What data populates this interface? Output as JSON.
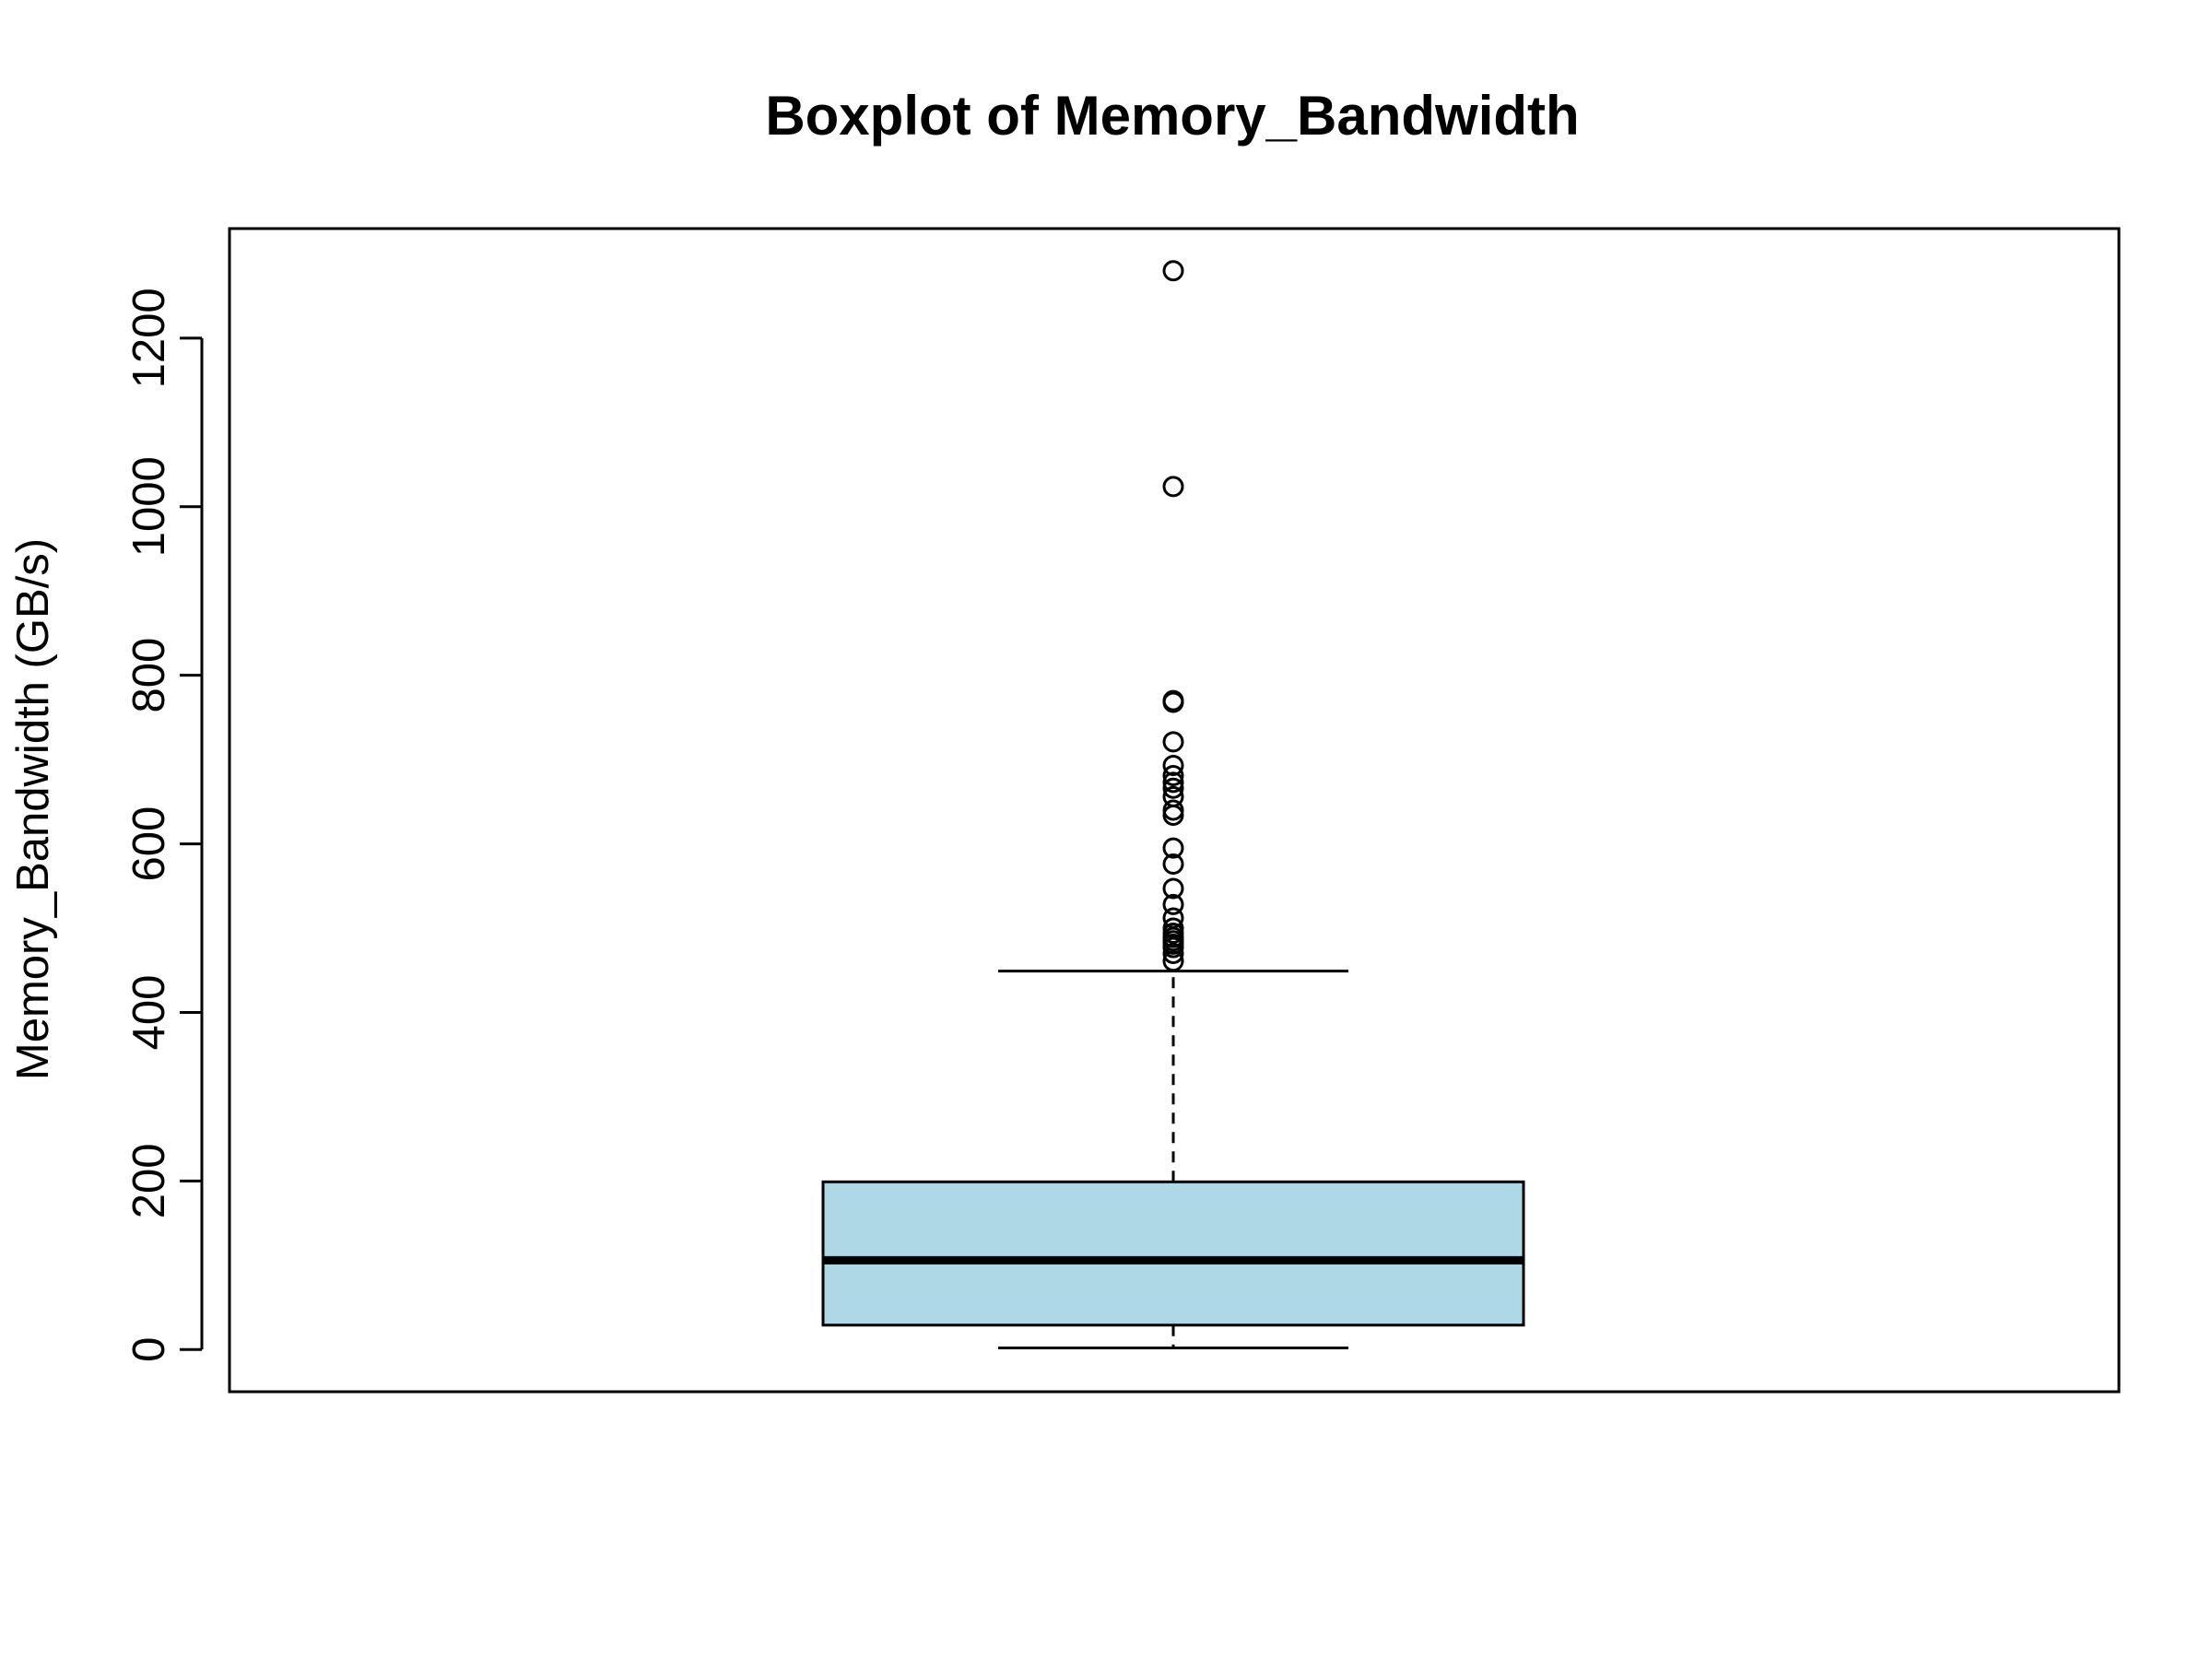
{
  "chart_data": {
    "type": "box",
    "title": "Boxplot of Memory_Bandwidth",
    "xlabel": "",
    "ylabel": "Memory_Bandwidth (GB/s)",
    "ylim": [
      -50,
      1330
    ],
    "yticks": [
      0,
      200,
      400,
      600,
      800,
      1000,
      1200
    ],
    "grid": false,
    "legend": "none",
    "box_color": "#add8e6",
    "box": {
      "whisker_low": 2,
      "q1": 29,
      "median": 106,
      "q3": 199,
      "whisker_high": 449
    },
    "outliers": [
      461,
      470,
      477,
      481,
      485,
      489,
      494,
      500,
      512,
      528,
      547,
      576,
      595,
      634,
      640,
      656,
      666,
      673,
      681,
      693,
      721,
      768,
      770,
      1024,
      1280
    ]
  }
}
